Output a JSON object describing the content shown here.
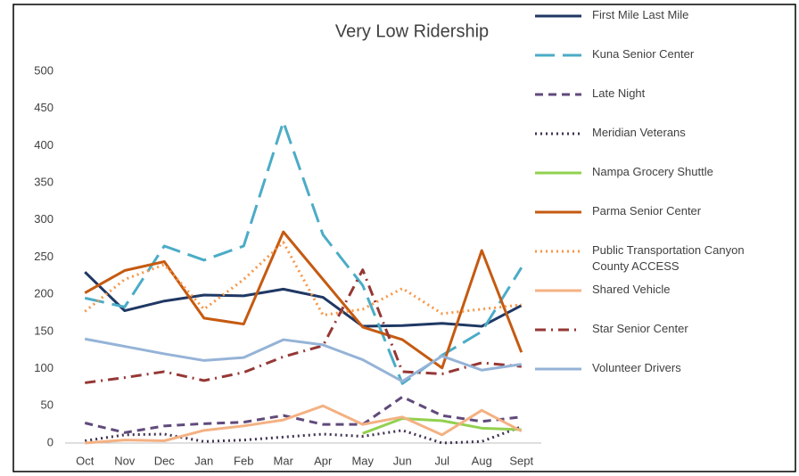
{
  "chart_data": {
    "type": "line",
    "title": "Very Low Ridership",
    "categories": [
      "Oct",
      "Nov",
      "Dec",
      "Jan",
      "Feb",
      "Mar",
      "Apr",
      "May",
      "Jun",
      "Jul",
      "Aug",
      "Sept"
    ],
    "ylim": [
      0,
      500
    ],
    "yticks": [
      0,
      50,
      100,
      150,
      200,
      250,
      300,
      350,
      400,
      450,
      500
    ],
    "grid": false,
    "legend": "right",
    "series": [
      {
        "name": "First Mile Last Mile",
        "color": "#1f3864",
        "style": "solid",
        "values": [
          230,
          178,
          191,
          199,
          198,
          207,
          196,
          157,
          158,
          161,
          157,
          185
        ]
      },
      {
        "name": "Kuna Senior Center",
        "color": "#4bacc6",
        "style": "long-dash",
        "values": [
          195,
          183,
          265,
          246,
          265,
          432,
          280,
          212,
          80,
          118,
          150,
          236
        ]
      },
      {
        "name": "Late Night",
        "color": "#604a7b",
        "style": "dash",
        "values": [
          27,
          14,
          23,
          26,
          28,
          37,
          25,
          25,
          62,
          37,
          29,
          35
        ]
      },
      {
        "name": "Meridian Veterans",
        "color": "#403152",
        "style": "dot",
        "values": [
          3,
          11,
          12,
          2,
          4,
          8,
          12,
          9,
          17,
          0,
          2,
          22
        ]
      },
      {
        "name": "Nampa Grocery Shuttle",
        "color": "#92d050",
        "style": "solid",
        "values": [
          null,
          null,
          null,
          null,
          null,
          null,
          null,
          13,
          33,
          30,
          20,
          18
        ]
      },
      {
        "name": "Parma Senior Center",
        "color": "#c55a11",
        "style": "solid",
        "values": [
          202,
          232,
          244,
          168,
          160,
          284,
          220,
          156,
          139,
          101,
          259,
          122
        ]
      },
      {
        "name": "Public Transportation Canyon County ACCESS",
        "color": "#f79646",
        "style": "dot",
        "values": [
          177,
          220,
          240,
          180,
          220,
          270,
          172,
          180,
          208,
          174,
          180,
          186
        ]
      },
      {
        "name": "Shared Vehicle",
        "color": "#f4b183",
        "style": "solid",
        "values": [
          0,
          4,
          3,
          17,
          23,
          31,
          50,
          25,
          35,
          11,
          44,
          16
        ]
      },
      {
        "name": "Star Senior Center",
        "color": "#953735",
        "style": "dash-dot",
        "values": [
          81,
          88,
          96,
          84,
          95,
          116,
          131,
          233,
          96,
          93,
          108,
          103
        ]
      },
      {
        "name": "Volunteer Drivers",
        "color": "#95b3d7",
        "style": "solid",
        "values": [
          140,
          130,
          120,
          111,
          115,
          139,
          132,
          112,
          83,
          117,
          98,
          106
        ]
      }
    ]
  }
}
